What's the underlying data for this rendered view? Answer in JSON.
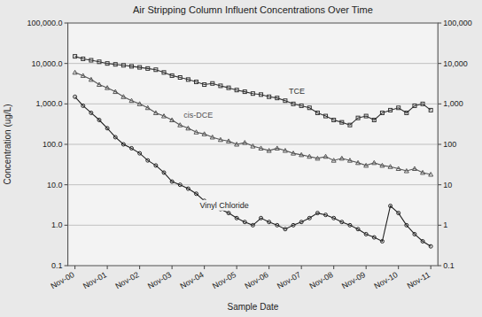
{
  "chart_data": {
    "type": "line",
    "title": "Air Stripping Column Influent Concentrations Over Time",
    "x_label": "Sample Date",
    "y_label": "Concentration (ug/L)",
    "log": "y",
    "grid": true,
    "ylim": [
      0.1,
      100000
    ],
    "yticks": [
      0.1,
      {
        "value": 1,
        "label": "1.0"
      },
      {
        "value": 10,
        "label": "10.0"
      },
      {
        "value": 100,
        "label": "100.0"
      },
      {
        "value": 1000,
        "label": "1,000.0"
      },
      {
        "value": 10000,
        "label": "10,000.0"
      },
      {
        "value": 100000,
        "label": "100,000.0"
      }
    ],
    "y2lim": [
      0.1,
      100000
    ],
    "y2ticks": [
      0.1,
      1,
      10,
      100,
      {
        "value": 1000,
        "label": "1,000"
      },
      {
        "value": 10000,
        "label": "10,000"
      },
      {
        "value": 100000,
        "label": "100,000"
      }
    ],
    "categories": [
      "Nov-00",
      null,
      null,
      null,
      "Nov-01",
      null,
      null,
      null,
      "Nov-02",
      null,
      null,
      null,
      "Nov-03",
      null,
      null,
      null,
      "Nov-04",
      null,
      null,
      null,
      "Nov-05",
      null,
      null,
      null,
      "Nov-06",
      null,
      null,
      null,
      "Nov-07",
      null,
      null,
      null,
      "Nov-08",
      null,
      null,
      null,
      "Nov-09",
      null,
      null,
      null,
      "Nov-10",
      null,
      null,
      null,
      "Nov-11"
    ],
    "series": [
      {
        "name": "TCE",
        "color": "#333333",
        "marker": "square",
        "line_style": "solid",
        "values": [
          15000,
          13000,
          12000,
          11000,
          10000,
          9500,
          9000,
          8500,
          8000,
          7500,
          7000,
          6000,
          5000,
          4500,
          4000,
          3500,
          3000,
          3200,
          2800,
          2500,
          2200,
          2000,
          1800,
          1700,
          1500,
          1400,
          1200,
          1000,
          900,
          800,
          600,
          500,
          400,
          350,
          300,
          450,
          500,
          400,
          600,
          700,
          800,
          600,
          900,
          1000,
          700
        ]
      },
      {
        "name": "cis-DCE",
        "color": "#555555",
        "marker": "triangle",
        "line_style": "solid",
        "values": [
          6000,
          5000,
          4000,
          3000,
          2500,
          2000,
          1500,
          1200,
          1000,
          800,
          600,
          500,
          400,
          300,
          250,
          200,
          180,
          150,
          130,
          120,
          100,
          110,
          90,
          80,
          70,
          80,
          70,
          60,
          55,
          50,
          45,
          50,
          40,
          45,
          40,
          35,
          30,
          35,
          30,
          28,
          25,
          22,
          25,
          20,
          18
        ]
      },
      {
        "name": "Vinyl Chloride",
        "color": "#222222",
        "marker": "circle",
        "line_style": "solid",
        "values": [
          1500,
          900,
          600,
          400,
          250,
          150,
          100,
          80,
          60,
          40,
          30,
          20,
          12,
          10,
          8,
          6,
          4,
          3,
          2.5,
          2,
          1.5,
          1.2,
          1,
          1.5,
          1.2,
          1,
          0.8,
          1,
          1.2,
          1.5,
          2,
          1.8,
          1.5,
          1.2,
          1,
          0.8,
          0.6,
          0.5,
          0.4,
          3,
          2,
          1,
          0.6,
          0.4,
          0.3
        ]
      }
    ]
  }
}
